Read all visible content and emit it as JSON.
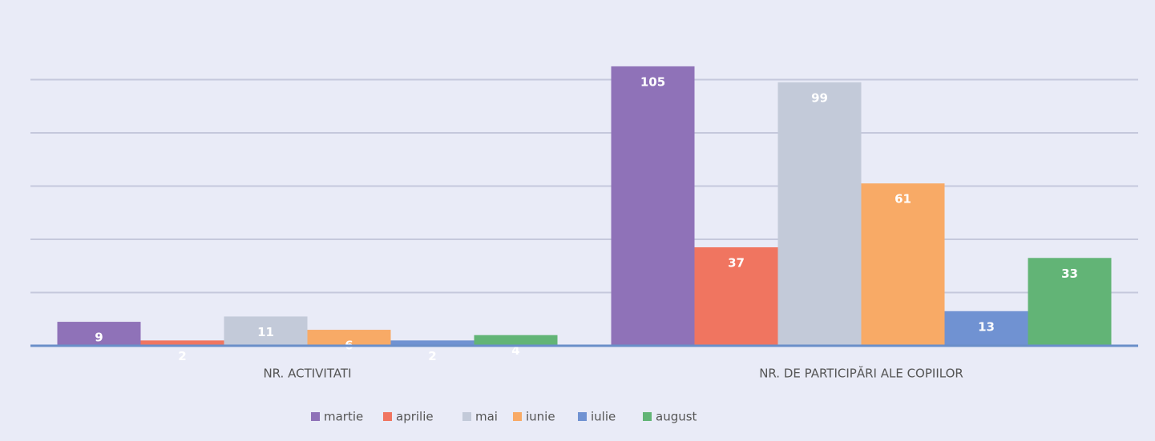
{
  "chart_data": {
    "type": "bar",
    "categories": [
      "NR. ACTIVITATI",
      "NR. DE PARTICIPĂRI ALE COPIILOR"
    ],
    "series": [
      {
        "name": "martie",
        "color": "#8f72b8",
        "values": [
          9,
          105
        ]
      },
      {
        "name": "aprilie",
        "color": "#f07560",
        "values": [
          2,
          37
        ]
      },
      {
        "name": "mai",
        "color": "#c3cad9",
        "values": [
          11,
          99
        ]
      },
      {
        "name": "iunie",
        "color": "#f8aa66",
        "values": [
          6,
          61
        ]
      },
      {
        "name": "iulie",
        "color": "#7092d2",
        "values": [
          2,
          13
        ]
      },
      {
        "name": "august",
        "color": "#62b476",
        "values": [
          4,
          33
        ]
      }
    ],
    "ylim": [
      0,
      120
    ],
    "yticks": [
      0,
      20,
      40,
      60,
      80,
      100
    ],
    "grid": true,
    "legend": "bottom"
  }
}
